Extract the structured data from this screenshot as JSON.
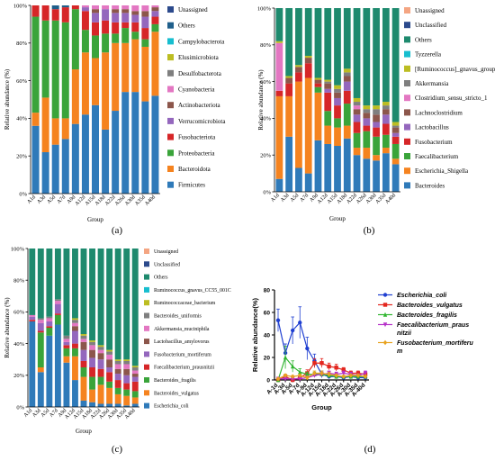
{
  "chart_data": [
    {
      "panel": "(a)",
      "type": "bar",
      "stacked": true,
      "ylabel": "Relative abundance (%)",
      "xlabel": "Group",
      "ylim": [
        0,
        100
      ],
      "yticks": [
        "0%",
        "20%",
        "40%",
        "60%",
        "80%",
        "100%"
      ],
      "categories": [
        "A1d",
        "A3d",
        "A5d",
        "A7d",
        "A9d",
        "A12d",
        "A15d",
        "A18d",
        "A22d",
        "A26d",
        "A30d",
        "A35d",
        "A40d"
      ],
      "series": [
        {
          "name": "Firmicutes",
          "color": "#2f7ab9",
          "values": [
            36,
            22,
            26,
            29,
            37,
            42,
            47,
            34,
            44,
            54,
            54,
            49,
            52
          ]
        },
        {
          "name": "Bacteroidota",
          "color": "#f5831f",
          "values": [
            7,
            29,
            14,
            11,
            29,
            33,
            25,
            41,
            36,
            26,
            28,
            29,
            34
          ]
        },
        {
          "name": "Proteobacteria",
          "color": "#3aa43a",
          "values": [
            51,
            41,
            52,
            51,
            32,
            12,
            12,
            10,
            5,
            8,
            4,
            4,
            4
          ]
        },
        {
          "name": "Fusobacteriota",
          "color": "#d62628",
          "values": [
            6,
            8,
            6,
            8,
            2,
            10,
            7,
            7,
            6,
            3,
            5,
            6,
            4
          ]
        },
        {
          "name": "Verrucomicrobiota",
          "color": "#9467bd",
          "values": [
            0,
            0,
            0,
            0,
            0,
            2,
            5,
            6,
            5,
            5,
            4,
            6,
            3
          ]
        },
        {
          "name": "Actinobacteriota",
          "color": "#8c564b",
          "values": [
            0,
            0,
            0,
            0,
            0,
            0,
            2,
            0,
            2,
            2,
            2,
            3,
            2
          ]
        },
        {
          "name": "Cyanobacteria",
          "color": "#e377c2",
          "values": [
            0,
            0,
            0,
            0,
            0,
            1,
            2,
            2,
            2,
            2,
            3,
            3,
            1
          ]
        },
        {
          "name": "Desulfobacterota",
          "color": "#7f7f7f",
          "values": [
            0,
            0,
            0,
            0,
            0,
            0,
            0,
            0,
            0,
            0,
            0,
            0,
            0
          ]
        },
        {
          "name": "Elusimicrobiota",
          "color": "#bcbd22",
          "values": [
            0,
            0,
            0,
            0,
            0,
            0,
            0,
            0,
            0,
            0,
            0,
            0,
            0
          ]
        },
        {
          "name": "Campylobacterota",
          "color": "#17becf",
          "values": [
            0,
            0,
            0,
            0,
            0,
            0,
            0,
            0,
            0,
            0,
            0,
            0,
            0
          ]
        },
        {
          "name": "Others",
          "color": "#1f5f8b",
          "values": [
            0,
            0,
            2,
            1,
            0,
            0,
            0,
            0,
            0,
            0,
            0,
            0,
            0
          ]
        },
        {
          "name": "Unassigned",
          "color": "#2c4a8c",
          "values": [
            0,
            0,
            0,
            0,
            0,
            0,
            0,
            0,
            0,
            0,
            0,
            0,
            0
          ]
        }
      ]
    },
    {
      "panel": "(b)",
      "type": "bar",
      "stacked": true,
      "ylabel": "Relative abundance (%)",
      "xlabel": "Group",
      "ylim": [
        0,
        100
      ],
      "yticks": [
        "0%",
        "20%",
        "40%",
        "60%",
        "80%",
        "100%"
      ],
      "categories": [
        "A1d",
        "A3d",
        "A5d",
        "A7d",
        "A9d",
        "A12d",
        "A15d",
        "A18d",
        "A22d",
        "A26d",
        "A30d",
        "A35d",
        "A40d"
      ],
      "series": [
        {
          "name": "Bacteroides",
          "color": "#2f7ab9",
          "values": [
            7,
            30,
            13,
            10,
            28,
            26,
            25,
            29,
            20,
            18,
            17,
            21,
            15
          ]
        },
        {
          "name": "Escherichia_Shigella",
          "color": "#f5831f",
          "values": [
            45,
            22,
            47,
            52,
            26,
            10,
            10,
            7,
            4,
            6,
            3,
            3,
            3
          ]
        },
        {
          "name": "Faecalibacterium",
          "color": "#3aa43a",
          "values": [
            0,
            0,
            0,
            0,
            3,
            8,
            5,
            12,
            8,
            9,
            10,
            7,
            8
          ]
        },
        {
          "name": "Fusobacterium",
          "color": "#d62628",
          "values": [
            3,
            7,
            5,
            8,
            2,
            10,
            7,
            7,
            6,
            3,
            5,
            6,
            4
          ]
        },
        {
          "name": "Lactobacillus",
          "color": "#9467bd",
          "values": [
            0,
            0,
            0,
            0,
            0,
            2,
            4,
            5,
            4,
            4,
            3,
            5,
            2
          ]
        },
        {
          "name": "Lachnoclostridium",
          "color": "#8c564b",
          "values": [
            0,
            3,
            3,
            3,
            2,
            3,
            3,
            3,
            3,
            3,
            4,
            3,
            3
          ]
        },
        {
          "name": "Clostridium_sensu_stricto_1",
          "color": "#e377c2",
          "values": [
            26,
            0,
            0,
            0,
            0,
            0,
            0,
            0,
            2,
            0,
            0,
            0,
            0
          ]
        },
        {
          "name": "Akkermansia",
          "color": "#7f7f7f",
          "values": [
            0,
            0,
            0,
            0,
            0,
            1,
            2,
            2,
            2,
            2,
            3,
            2,
            1
          ]
        },
        {
          "name": "[Ruminococcus]_gnavus_group",
          "color": "#bcbd22",
          "values": [
            1,
            1,
            1,
            1,
            1,
            1,
            2,
            2,
            2,
            2,
            2,
            2,
            2
          ]
        },
        {
          "name": "Tyzzerella",
          "color": "#17becf",
          "values": [
            0,
            0,
            0,
            0,
            0,
            0,
            0,
            0,
            0,
            0,
            0,
            0,
            0
          ]
        },
        {
          "name": "Others",
          "color": "#1e8a6e",
          "values": [
            18,
            37,
            31,
            26,
            38,
            39,
            42,
            33,
            49,
            53,
            53,
            51,
            62
          ]
        },
        {
          "name": "Unclassified",
          "color": "#2c4a8c",
          "values": [
            0,
            0,
            0,
            0,
            0,
            0,
            0,
            0,
            0,
            0,
            0,
            0,
            0
          ]
        },
        {
          "name": "Unassigned",
          "color": "#f4a582",
          "values": [
            0,
            0,
            0,
            0,
            0,
            0,
            0,
            0,
            0,
            0,
            0,
            0,
            0
          ]
        }
      ]
    },
    {
      "panel": "(c)",
      "type": "bar",
      "stacked": true,
      "ylabel": "Relative abundance (%)",
      "xlabel": "Group",
      "ylim": [
        0,
        100
      ],
      "yticks": [
        "0%",
        "20%",
        "40%",
        "60%",
        "80%",
        "100%"
      ],
      "categories": [
        "A1d",
        "A3d",
        "A5d",
        "A7d",
        "A9d",
        "A12d",
        "A15d",
        "A18d",
        "A22d",
        "A26d",
        "A30d",
        "A35d",
        "A40d"
      ],
      "series": [
        {
          "name": "Escherichia_coli",
          "color": "#2f7ab9",
          "values": [
            54,
            22,
            45,
            52,
            28,
            17,
            4,
            3,
            2,
            2,
            2,
            1,
            2
          ]
        },
        {
          "name": "Bacteroides_vulgatus",
          "color": "#f5831f",
          "values": [
            0,
            3,
            0,
            0,
            4,
            15,
            15,
            8,
            12,
            10,
            6,
            6,
            4
          ]
        },
        {
          "name": "Bacteroides_fragilis",
          "color": "#3aa43a",
          "values": [
            0,
            22,
            5,
            6,
            5,
            5,
            6,
            8,
            5,
            4,
            4,
            4,
            4
          ]
        },
        {
          "name": "Faecalibacterium_prausnitzii",
          "color": "#d62628",
          "values": [
            1,
            1,
            1,
            1,
            2,
            3,
            4,
            6,
            5,
            6,
            5,
            4,
            6
          ]
        },
        {
          "name": "Fusobacterium_mortiferum",
          "color": "#9467bd",
          "values": [
            2,
            5,
            3,
            6,
            2,
            8,
            7,
            6,
            6,
            3,
            4,
            5,
            3
          ]
        },
        {
          "name": "Lactobacillus_amylovorus",
          "color": "#8c564b",
          "values": [
            0,
            0,
            0,
            0,
            0,
            3,
            5,
            5,
            4,
            5,
            3,
            4,
            2
          ]
        },
        {
          "name": "Akkermansia_muciniphila",
          "color": "#e377c2",
          "values": [
            1,
            2,
            2,
            2,
            2,
            2,
            2,
            3,
            2,
            3,
            3,
            3,
            2
          ]
        },
        {
          "name": "Bacteroides_uniformis",
          "color": "#7f7f7f",
          "values": [
            0,
            1,
            1,
            1,
            2,
            2,
            2,
            2,
            2,
            2,
            2,
            2,
            2
          ]
        },
        {
          "name": "Ruminococcaceae_bacterium",
          "color": "#bcbd22",
          "values": [
            0,
            0,
            0,
            0,
            0,
            1,
            1,
            1,
            1,
            1,
            1,
            1,
            1
          ]
        },
        {
          "name": "Ruminococcus_gnavus_CC55_001C",
          "color": "#17becf",
          "values": [
            0,
            0,
            0,
            0,
            0,
            0,
            0,
            0,
            0,
            0,
            0,
            0,
            0
          ]
        },
        {
          "name": "Others",
          "color": "#1e8a6e",
          "values": [
            42,
            44,
            43,
            32,
            55,
            44,
            54,
            58,
            61,
            64,
            70,
            70,
            74
          ]
        },
        {
          "name": "Unclassified",
          "color": "#2c4a8c",
          "values": [
            0,
            0,
            0,
            0,
            0,
            0,
            0,
            0,
            0,
            0,
            0,
            0,
            0
          ]
        },
        {
          "name": "Unassigned",
          "color": "#f4a582",
          "values": [
            0,
            0,
            0,
            0,
            0,
            0,
            0,
            0,
            0,
            0,
            0,
            0,
            0
          ]
        }
      ]
    },
    {
      "panel": "(d)",
      "type": "line",
      "ylabel": "Relative abundance(%)",
      "xlabel": "Group",
      "ylim": [
        0,
        80
      ],
      "yticks": [
        "0",
        "20",
        "40",
        "60",
        "80"
      ],
      "categories": [
        "A-1d",
        "A-3d",
        "A-5d",
        "A-7d",
        "A-9d",
        "A-12d",
        "A-15d",
        "A-18d",
        "A-22d",
        "A-26d",
        "A-30d",
        "A-35d",
        "A-40d"
      ],
      "series": [
        {
          "name": "Escherichia_coli",
          "color": "#1f3fd1",
          "marker": "circle",
          "values": [
            53,
            24,
            44,
            51,
            28,
            17,
            5,
            3,
            3,
            2,
            3,
            2,
            2
          ],
          "errors": [
            10,
            8,
            12,
            14,
            10,
            6,
            3,
            2,
            2,
            1,
            2,
            1,
            1
          ]
        },
        {
          "name": "Bacteroides_vulgatus",
          "color": "#e3261e",
          "marker": "square",
          "values": [
            0,
            3,
            0,
            2,
            6,
            15,
            15,
            12,
            11,
            9,
            6,
            6,
            5
          ],
          "errors": [
            0,
            2,
            0,
            1,
            3,
            4,
            4,
            3,
            3,
            2,
            2,
            2,
            2
          ]
        },
        {
          "name": "Bacteroides_fragilis",
          "color": "#2fb52f",
          "marker": "triangle-up",
          "values": [
            0,
            20,
            12,
            7,
            5,
            5,
            5,
            4,
            3,
            3,
            3,
            3,
            3
          ],
          "errors": [
            0,
            10,
            5,
            3,
            2,
            2,
            2,
            2,
            1,
            1,
            1,
            1,
            1
          ]
        },
        {
          "name": "Faecalibacterium_prausnitzii",
          "color": "#b52fc8",
          "marker": "triangle-down",
          "values": [
            1,
            1,
            1,
            1,
            2,
            4,
            5,
            6,
            5,
            6,
            5,
            4,
            6
          ],
          "errors": [
            0,
            0,
            0,
            0,
            1,
            1,
            2,
            2,
            2,
            2,
            2,
            1,
            2
          ]
        },
        {
          "name": "Fusobacterium_mortiferum",
          "color": "#e8a21e",
          "marker": "diamond",
          "values": [
            1,
            4,
            3,
            4,
            2,
            6,
            6,
            5,
            4,
            3,
            4,
            4,
            3
          ],
          "errors": [
            0,
            1,
            1,
            1,
            1,
            2,
            2,
            2,
            1,
            1,
            1,
            1,
            1
          ]
        }
      ],
      "legend_labels": [
        "Escherichia_coli",
        "Bacteroides_vulgatus",
        "Bacteroides_fragilis",
        "Faecalibacterium_praus",
        "nitzii",
        "Fusobacterium_mortiferu",
        "m"
      ]
    }
  ]
}
